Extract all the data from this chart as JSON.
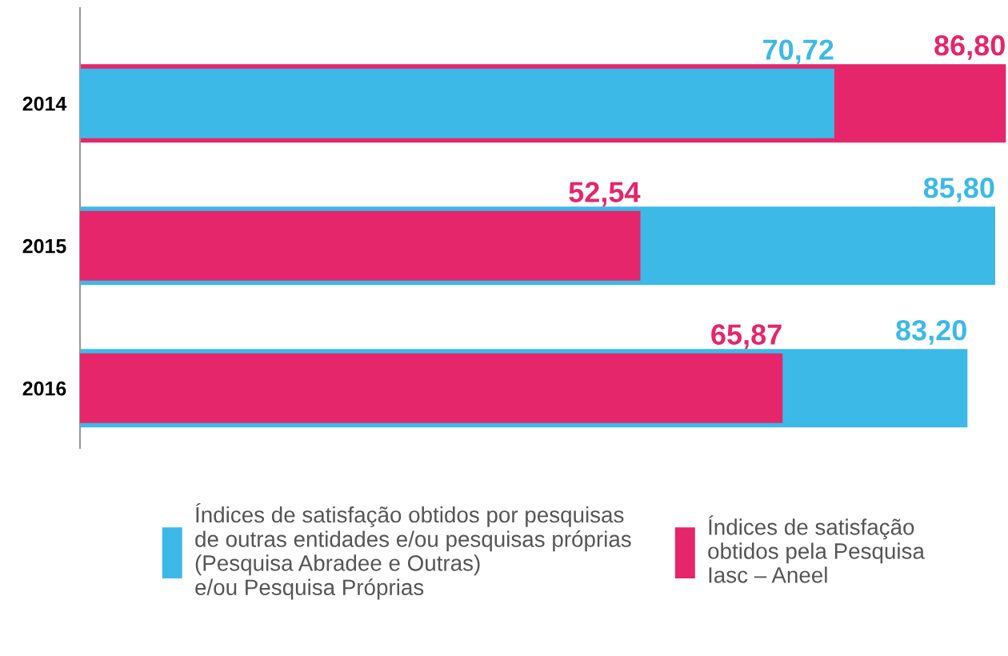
{
  "chart_data": {
    "type": "bar",
    "orientation": "horizontal",
    "xlim": [
      0,
      87
    ],
    "tick_labels": "y",
    "categories": [
      "2014",
      "2015",
      "2016"
    ],
    "series": [
      {
        "name": "Índices de satisfação obtidos por pesquisas\nde outras entidades e/ou pesquisas próprias\n(Pesquisa Abradee e Outras)\ne/ou Pesquisa Próprias",
        "color": "#3db9e7",
        "values": [
          70.72,
          85.8,
          83.2
        ],
        "value_labels": [
          "70,72",
          "85,80",
          "83,20"
        ]
      },
      {
        "name": "Índices de satisfação\nobtidos pela Pesquisa\nIasc – Aneel",
        "color": "#e5266b",
        "values": [
          86.8,
          52.54,
          65.87
        ],
        "value_labels": [
          "86,80",
          "52,54",
          "65,87"
        ]
      }
    ],
    "legend": "bottom",
    "grid": false
  }
}
